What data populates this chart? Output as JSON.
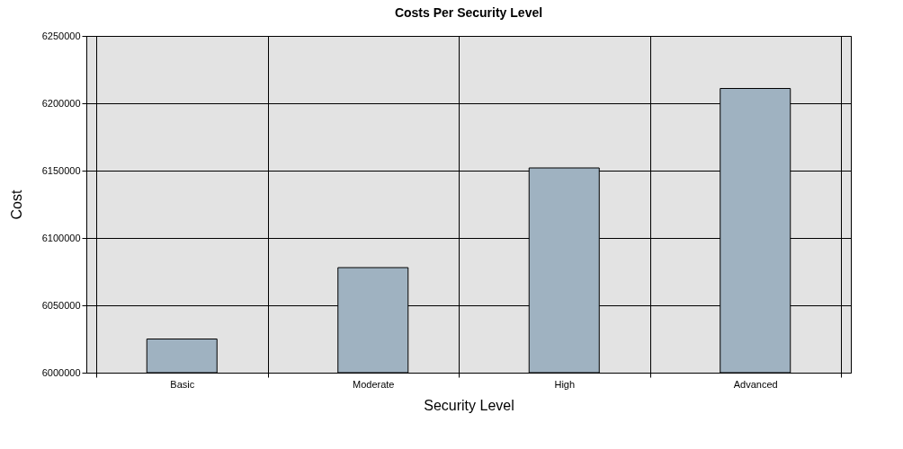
{
  "chart_data": {
    "type": "bar",
    "title": "Costs Per Security Level",
    "xlabel": "Security Level",
    "ylabel": "Cost",
    "categories": [
      "Basic",
      "Moderate",
      "High",
      "Advanced"
    ],
    "values": [
      6025000,
      6078000,
      6152000,
      6211000
    ],
    "color": "#9fb2c1",
    "ylim": [
      6000000,
      6250000
    ],
    "yticks": [
      6000000,
      6050000,
      6100000,
      6150000,
      6200000,
      6250000
    ],
    "grid": true
  }
}
